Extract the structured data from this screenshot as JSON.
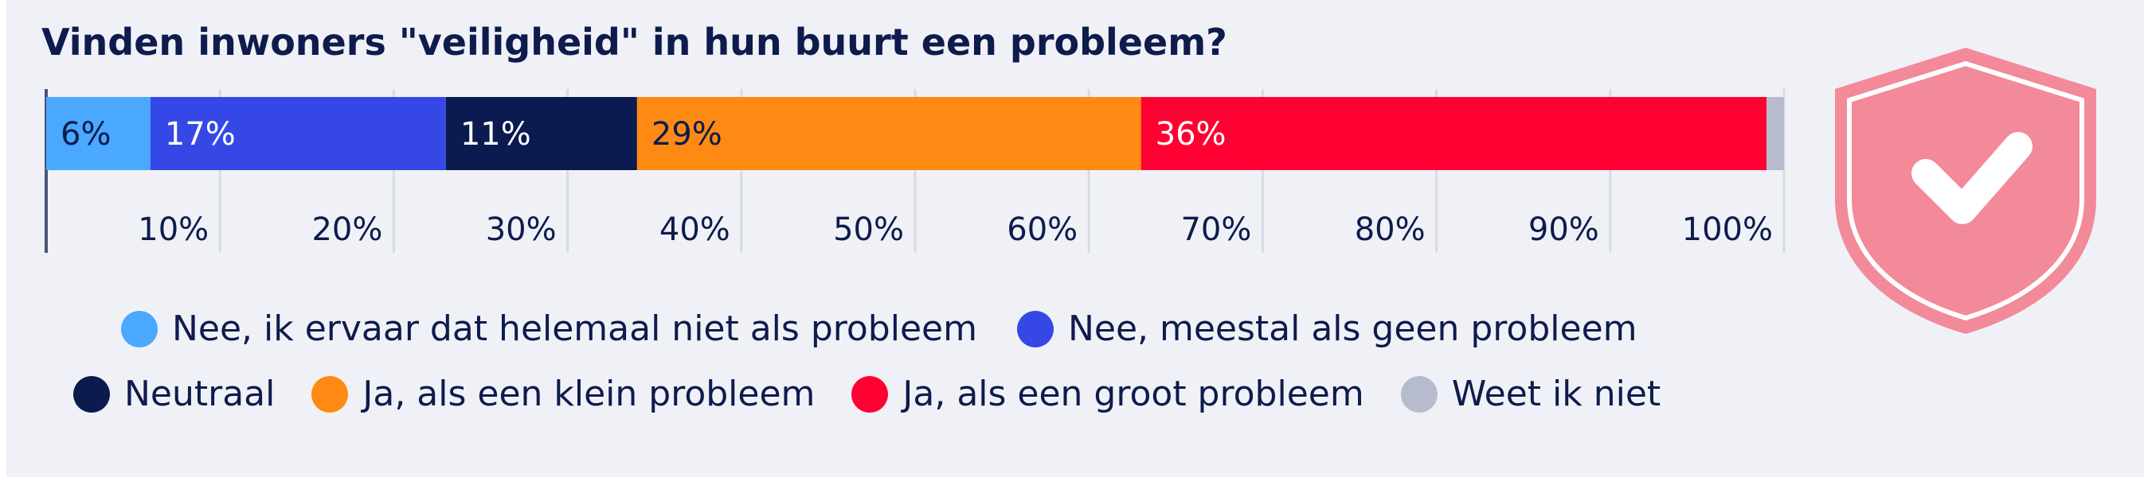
{
  "chart_data": {
    "type": "bar",
    "orientation": "horizontal-stacked",
    "title": "Vinden inwoners \"veiligheid\" in hun buurt een probleem?",
    "xlim": [
      0,
      100
    ],
    "ticks": [
      "10%",
      "20%",
      "30%",
      "40%",
      "50%",
      "60%",
      "70%",
      "80%",
      "90%",
      "100%"
    ],
    "grid": true,
    "legend_position": "bottom",
    "series": [
      {
        "name": "Nee, ik ervaar dat helemaal niet als probleem",
        "value": 6,
        "label": "6%",
        "color": "#4aa8ff",
        "label_color": "#0d1b4d"
      },
      {
        "name": "Nee, meestal als geen probleem",
        "value": 17,
        "label": "17%",
        "color": "#3548e6",
        "label_color": "#ffffff"
      },
      {
        "name": "Neutraal",
        "value": 11,
        "label": "11%",
        "color": "#0b1a4f",
        "label_color": "#ffffff"
      },
      {
        "name": "Ja, als een klein probleem",
        "value": 29,
        "label": "29%",
        "color": "#ff8a13",
        "label_color": "#0d1b4d"
      },
      {
        "name": "Ja, als een groot probleem",
        "value": 36,
        "label": "36%",
        "color": "#ff0033",
        "label_color": "#ffffff"
      },
      {
        "name": "Weet ik niet",
        "value": 1,
        "label": "",
        "color": "#b6bccd",
        "label_color": "#0d1b4d"
      }
    ]
  },
  "icon": {
    "name": "shield-check-icon",
    "color": "#f28a99"
  }
}
